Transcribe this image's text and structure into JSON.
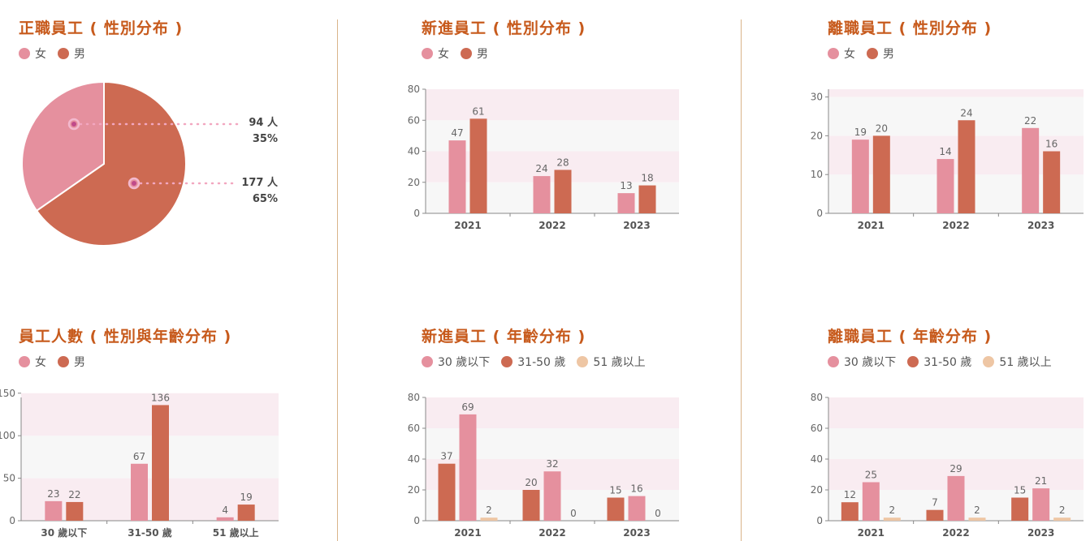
{
  "colors": {
    "female": "#e5909e",
    "male": "#cd6a52",
    "senior": "#eec6a4",
    "title": "#c75a1c"
  },
  "panels": {
    "p1": {
      "title": "正職員工 ( 性別分布 )",
      "legend": [
        "女",
        "男"
      ]
    },
    "p2": {
      "title": "新進員工 ( 性別分布 )",
      "legend": [
        "女",
        "男"
      ]
    },
    "p3": {
      "title": "離職員工 ( 性別分布 )",
      "legend": [
        "女",
        "男"
      ]
    },
    "p4": {
      "title": "員工人數 ( 性別與年齡分布 )",
      "legend": [
        "女",
        "男"
      ]
    },
    "p5": {
      "title": "新進員工 ( 年齡分布 )",
      "legend": [
        "30 歲以下",
        "31-50 歲",
        "51 歲以上"
      ]
    },
    "p6": {
      "title": "離職員工 ( 年齡分布 )",
      "legend": [
        "30 歲以下",
        "31-50 歲",
        "51 歲以上"
      ]
    }
  },
  "chart_data": [
    {
      "type": "pie",
      "title": "正職員工 ( 性別分布 )",
      "slices": [
        {
          "name": "女",
          "value": 94,
          "label": "94 人",
          "percent": "35%"
        },
        {
          "name": "男",
          "value": 177,
          "label": "177 人",
          "percent": "65%"
        }
      ]
    },
    {
      "type": "bar",
      "title": "新進員工 ( 性別分布 )",
      "categories": [
        "2021",
        "2022",
        "2023"
      ],
      "series": [
        {
          "name": "女",
          "values": [
            47,
            24,
            13
          ]
        },
        {
          "name": "男",
          "values": [
            61,
            28,
            18
          ]
        }
      ],
      "yticks": [
        0,
        20,
        40,
        60,
        80
      ],
      "ylim": [
        0,
        80
      ]
    },
    {
      "type": "bar",
      "title": "離職員工 ( 性別分布 )",
      "categories": [
        "2021",
        "2022",
        "2023"
      ],
      "series": [
        {
          "name": "女",
          "values": [
            19,
            14,
            22
          ]
        },
        {
          "name": "男",
          "values": [
            20,
            24,
            16
          ]
        }
      ],
      "yticks": [
        0,
        10,
        20,
        30
      ],
      "ylim": [
        0,
        32
      ]
    },
    {
      "type": "bar",
      "title": "員工人數 ( 性別與年齡分布 )",
      "categories": [
        "30 歲以下",
        "31-50 歲",
        "51 歲以上"
      ],
      "series": [
        {
          "name": "女",
          "values": [
            23,
            67,
            4
          ]
        },
        {
          "name": "男",
          "values": [
            22,
            136,
            19
          ]
        }
      ],
      "yticks": [
        0,
        50,
        100,
        150
      ],
      "ylim": [
        0,
        145
      ]
    },
    {
      "type": "bar",
      "title": "新進員工 ( 年齡分布 )",
      "categories": [
        "2021",
        "2022",
        "2023"
      ],
      "series": [
        {
          "name": "31-50 歲",
          "values": [
            37,
            20,
            15
          ]
        },
        {
          "name": "30 歲以下",
          "values": [
            69,
            32,
            16
          ]
        },
        {
          "name": "51 歲以上",
          "values": [
            2,
            0,
            0
          ]
        }
      ],
      "yticks": [
        0,
        20,
        40,
        60,
        80
      ],
      "ylim": [
        0,
        80
      ]
    },
    {
      "type": "bar",
      "title": "離職員工 ( 年齡分布 )",
      "categories": [
        "2021",
        "2022",
        "2023"
      ],
      "series": [
        {
          "name": "31-50 歲",
          "values": [
            12,
            7,
            15
          ]
        },
        {
          "name": "30 歲以下",
          "values": [
            25,
            29,
            21
          ]
        },
        {
          "name": "51 歲以上",
          "values": [
            2,
            2,
            2
          ]
        }
      ],
      "yticks": [
        0,
        20,
        40,
        60,
        80
      ],
      "ylim": [
        0,
        80
      ]
    }
  ]
}
